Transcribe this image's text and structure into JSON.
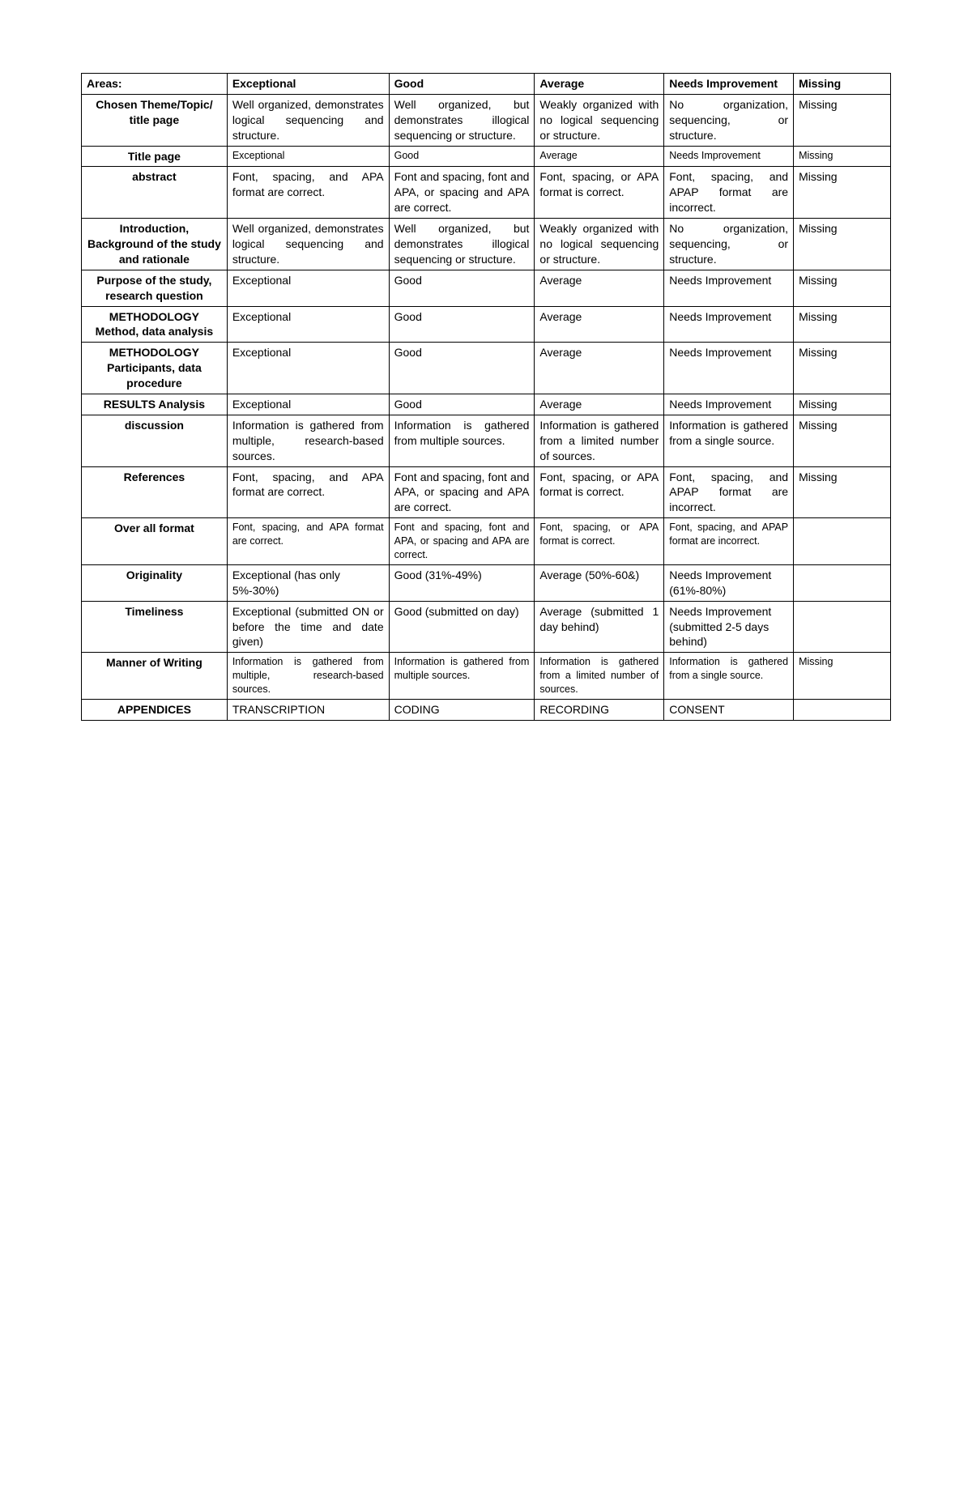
{
  "columns": [
    "Areas:",
    "Exceptional",
    "Good",
    "Average",
    "Needs Improvement",
    "Missing"
  ],
  "rows": [
    {
      "area": "Chosen Theme/Topic/ title page",
      "c1": "Well organized, demonstrates logical sequencing and structure.",
      "c2": "Well organized, but demonstrates illogical sequencing or structure.",
      "c3": "Weakly organized with no logical sequencing or structure.",
      "c4": "No organization, sequencing, or structure.",
      "c5": "Missing",
      "small": false,
      "justify": [
        true,
        true,
        true,
        true,
        false
      ]
    },
    {
      "area": "Title page",
      "c1": "Exceptional",
      "c2": "Good",
      "c3": "Average",
      "c4": "Needs Improvement",
      "c5": "Missing",
      "small": true,
      "justify": [
        false,
        false,
        false,
        false,
        false
      ]
    },
    {
      "area": "abstract",
      "c1": "Font, spacing, and APA format are correct.",
      "c2": "Font and spacing, font and APA, or spacing and APA are correct.",
      "c3": "Font, spacing, or APA format is correct.",
      "c4": "Font, spacing, and APAP format are incorrect.",
      "c5": "Missing",
      "small": false,
      "justify": [
        true,
        true,
        true,
        true,
        false
      ]
    },
    {
      "area": "Introduction, Background of the study  and rationale",
      "c1": "Well organized, demonstrates logical sequencing and structure.",
      "c2": "Well organized, but demonstrates illogical sequencing or structure.",
      "c3": "Weakly organized with no logical sequencing or structure.",
      "c4": "No organization, sequencing, or structure.",
      "c5": "Missing",
      "small": false,
      "justify": [
        true,
        true,
        true,
        true,
        false
      ]
    },
    {
      "area": "Purpose of the study, research question",
      "c1": "Exceptional",
      "c2": "Good",
      "c3": "Average",
      "c4": "Needs Improvement",
      "c5": "Missing",
      "small": false,
      "justify": [
        false,
        false,
        false,
        false,
        false
      ]
    },
    {
      "area": "METHODOLOGY Method, data analysis",
      "c1": "Exceptional",
      "c2": "Good",
      "c3": "Average",
      "c4": "Needs Improvement",
      "c5": "Missing",
      "small": false,
      "justify": [
        false,
        false,
        false,
        false,
        false
      ]
    },
    {
      "area": "METHODOLOGY Participants, data procedure",
      "c1": "Exceptional",
      "c2": "Good",
      "c3": "Average",
      "c4": "Needs Improvement",
      "c5": "Missing",
      "small": false,
      "justify": [
        false,
        false,
        false,
        false,
        false
      ]
    },
    {
      "area": "RESULTS Analysis",
      "c1": "Exceptional",
      "c2": "Good",
      "c3": "Average",
      "c4": "Needs Improvement",
      "c5": "Missing",
      "small": false,
      "justify": [
        false,
        false,
        false,
        false,
        false
      ]
    },
    {
      "area": "discussion",
      "c1": "Information is gathered from multiple, research-based sources.",
      "c2": "Information is gathered from multiple sources.",
      "c3": "Information is gathered from a limited number of sources.",
      "c4": "Information is gathered from a single source.",
      "c5": "Missing",
      "small": false,
      "justify": [
        true,
        true,
        true,
        true,
        false
      ]
    },
    {
      "area": "References",
      "c1": "Font, spacing, and APA format are correct.",
      "c2": "Font and spacing, font and APA, or spacing and APA are correct.",
      "c3": "Font, spacing, or APA format is correct.",
      "c4": "Font, spacing, and APAP format are incorrect.",
      "c5": "Missing",
      "small": false,
      "justify": [
        true,
        true,
        true,
        true,
        false
      ]
    },
    {
      "area": "Over all format",
      "c1": "Font, spacing, and APA format are correct.",
      "c2": "Font and spacing, font and APA, or spacing and APA are correct.",
      "c3": "Font, spacing, or APA format is correct.",
      "c4": "Font, spacing, and APAP format are incorrect.",
      "c5": "",
      "small": true,
      "justify": [
        true,
        true,
        true,
        true,
        false
      ]
    },
    {
      "area": "Originality",
      "c1": "Exceptional (has only 5%-30%)",
      "c2": "Good (31%-49%)",
      "c3": "Average (50%-60&)",
      "c4": "Needs Improvement (61%-80%)",
      "c5": "",
      "small": false,
      "justify": [
        false,
        true,
        false,
        false,
        false
      ]
    },
    {
      "area": "Timeliness",
      "c1": "Exceptional (submitted ON or before the time and date given)",
      "c2": "Good (submitted on day)",
      "c3": "Average (submitted 1 day behind)",
      "c4": "Needs Improvement (submitted 2-5 days behind)",
      "c5": "",
      "small": false,
      "justify": [
        true,
        false,
        true,
        false,
        false
      ]
    },
    {
      "area": "Manner of Writing",
      "c1": "Information is gathered from multiple, research-based sources.",
      "c2": "Information is gathered from multiple sources.",
      "c3": "Information is gathered from a limited number of sources.",
      "c4": "Information is gathered from a single source.",
      "c5": "Missing",
      "small": true,
      "justify": [
        true,
        true,
        true,
        true,
        false
      ]
    },
    {
      "area": "APPENDICES",
      "c1": "TRANSCRIPTION",
      "c2": "CODING",
      "c3": "RECORDING",
      "c4": "CONSENT",
      "c5": "",
      "small": false,
      "justify": [
        false,
        false,
        false,
        false,
        false
      ]
    }
  ],
  "style": {
    "border_color": "#000000",
    "background_color": "#ffffff",
    "text_color": "#000000",
    "font_family": "Arial",
    "base_fontsize": 14,
    "small_fontsize": 12.5,
    "column_widths_pct": [
      18,
      20,
      18,
      16,
      16,
      12
    ]
  }
}
